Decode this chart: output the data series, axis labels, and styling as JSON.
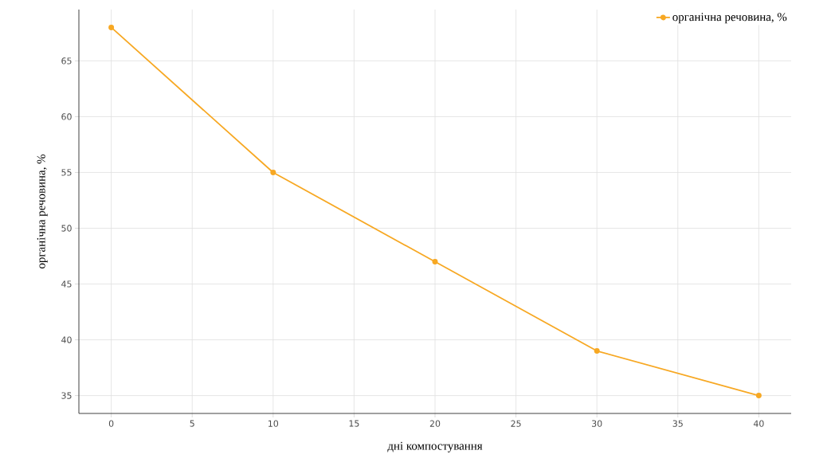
{
  "chart_data": {
    "type": "line",
    "xlabel": "дні компостування",
    "ylabel": "органічна речовина, %",
    "x": [
      0,
      10,
      20,
      30,
      40
    ],
    "series": [
      {
        "name": "органічна речовина, %",
        "color": "#f7a823",
        "values": [
          68,
          55,
          47,
          39,
          35
        ]
      }
    ],
    "xlim": [
      -2,
      42
    ],
    "ylim": [
      33.4,
      69.6
    ],
    "xticks": [
      0,
      5,
      10,
      15,
      20,
      25,
      30,
      35,
      40
    ],
    "yticks": [
      35,
      40,
      45,
      50,
      55,
      60,
      65
    ],
    "grid": true,
    "legend": "top right",
    "marker": "circle",
    "line_style": "solid"
  }
}
